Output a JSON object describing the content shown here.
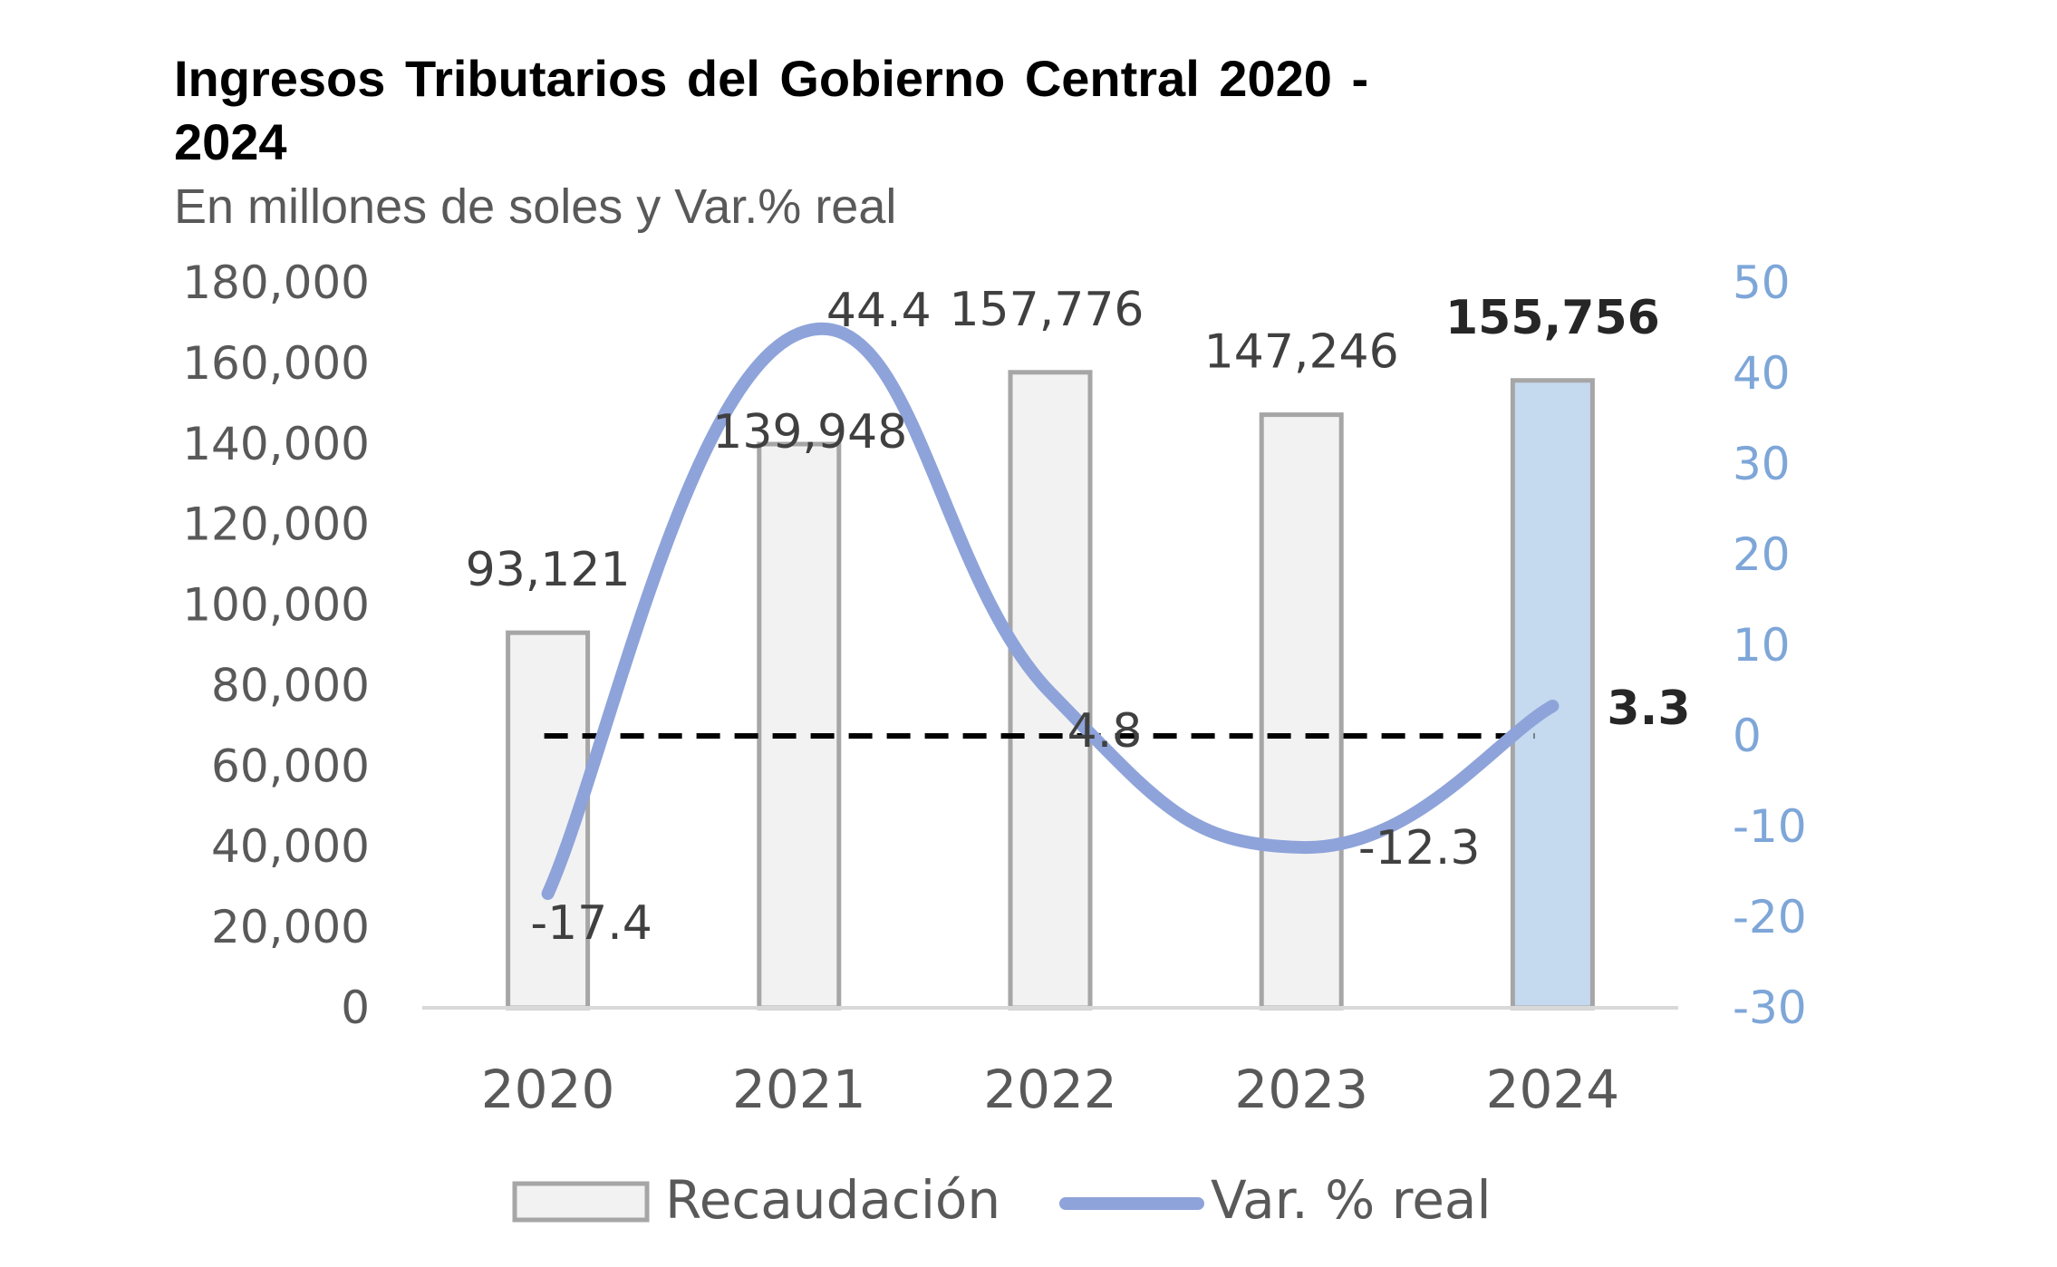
{
  "chart_data": {
    "type": "bar",
    "title": "Ingresos Tributarios del Gobierno Central 2020 - 2024",
    "subtitle": "En millones de soles y Var.% real",
    "categories": [
      "2020",
      "2021",
      "2022",
      "2023",
      "2024"
    ],
    "series": [
      {
        "name": "Recaudación",
        "type": "bar",
        "axis": "left",
        "values": [
          93121,
          139948,
          157776,
          147246,
          155756
        ],
        "labels": [
          "93,121",
          "139,948",
          "157,776",
          "147,246",
          "155,756"
        ],
        "color": "#f2f2f2",
        "highlight_color": "#c5d9ef",
        "edge_color": "#a6a6a6"
      },
      {
        "name": "Var. % real",
        "type": "line",
        "axis": "right",
        "smooth": true,
        "values": [
          -17.4,
          44.4,
          4.8,
          -12.3,
          3.3
        ],
        "labels": [
          "-17.4",
          "44.4",
          "4.8",
          "-12.3",
          "3.3"
        ],
        "color": "#8ea3d9"
      }
    ],
    "highlight_index": 4,
    "y_left": {
      "min": 0,
      "max": 180000,
      "ticks": [
        "0",
        "20,000",
        "40,000",
        "60,000",
        "80,000",
        "100,000",
        "120,000",
        "140,000",
        "160,000",
        "180,000"
      ],
      "tick_color": "#595959"
    },
    "y_right": {
      "min": -30,
      "max": 50,
      "ticks": [
        "-30",
        "-20",
        "-10",
        "0",
        "10",
        "20",
        "30",
        "40",
        "50"
      ],
      "tick_color": "#7ea6d8"
    },
    "zero_line": {
      "value": 0,
      "axis": "right",
      "style": "dashed",
      "color": "#000000"
    },
    "legend_position": "bottom",
    "grid": false
  }
}
